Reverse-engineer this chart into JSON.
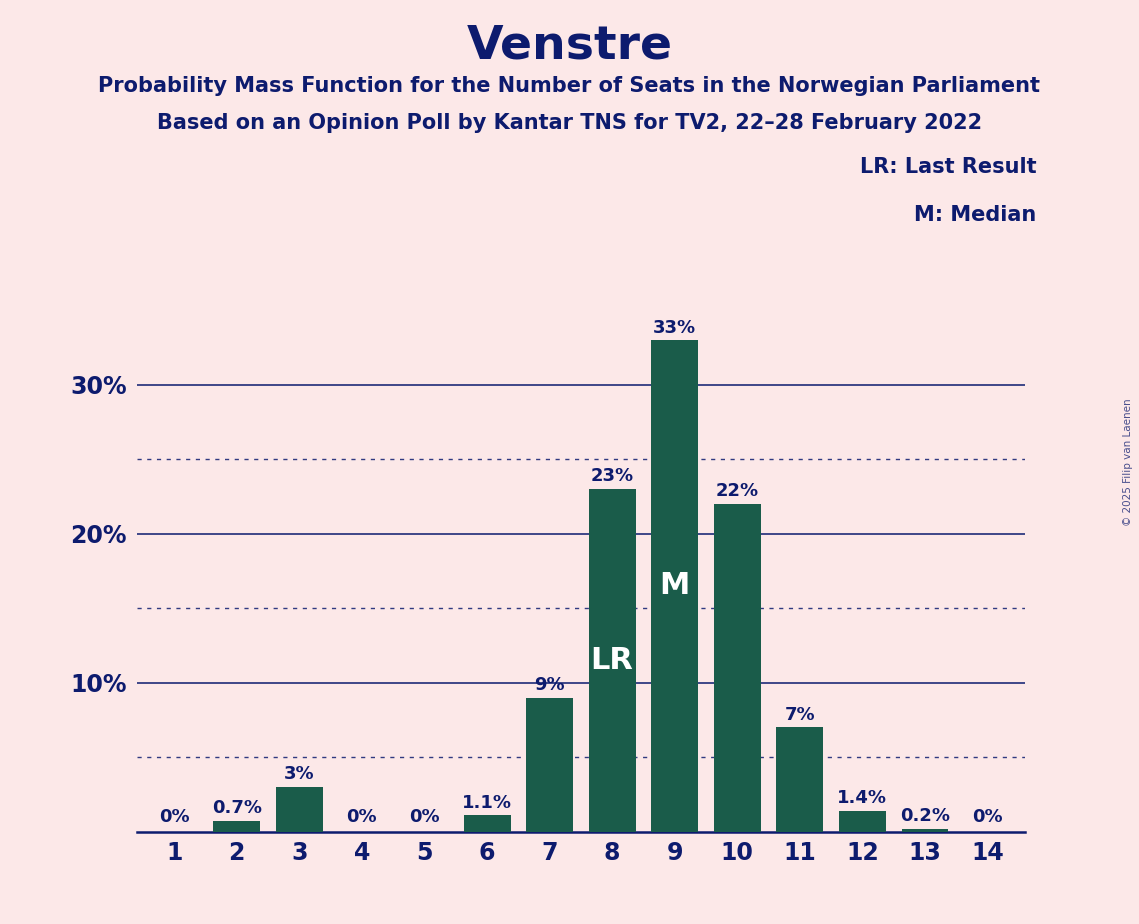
{
  "title": "Venstre",
  "subtitle1": "Probability Mass Function for the Number of Seats in the Norwegian Parliament",
  "subtitle2": "Based on an Opinion Poll by Kantar TNS for TV2, 22–28 February 2022",
  "watermark": "© 2025 Filip van Laenen",
  "categories": [
    1,
    2,
    3,
    4,
    5,
    6,
    7,
    8,
    9,
    10,
    11,
    12,
    13,
    14
  ],
  "values": [
    0.0,
    0.7,
    3.0,
    0.0,
    0.0,
    1.1,
    9.0,
    23.0,
    33.0,
    22.0,
    7.0,
    1.4,
    0.2,
    0.0
  ],
  "labels": [
    "0%",
    "0.7%",
    "3%",
    "0%",
    "0%",
    "1.1%",
    "9%",
    "23%",
    "33%",
    "22%",
    "7%",
    "1.4%",
    "0.2%",
    "0%"
  ],
  "bar_color": "#1a5c4a",
  "background_color": "#fce8e8",
  "title_color": "#0d1b6e",
  "label_color": "#0d1b6e",
  "axis_color": "#0d1b6e",
  "grid_solid_color": "#0d1b6e",
  "grid_dotted_color": "#0d1b6e",
  "lr_bar_index": 7,
  "median_bar_index": 8,
  "legend_text1": "LR: Last Result",
  "legend_text2": "M: Median",
  "ylim": [
    0,
    36
  ],
  "solid_grid_lines": [
    10,
    20,
    30
  ],
  "dotted_grid_lines": [
    5,
    15,
    25
  ],
  "title_fontsize": 34,
  "subtitle_fontsize": 15,
  "tick_fontsize": 17,
  "label_fontsize": 13,
  "inside_label_fontsize": 22,
  "legend_fontsize": 15
}
